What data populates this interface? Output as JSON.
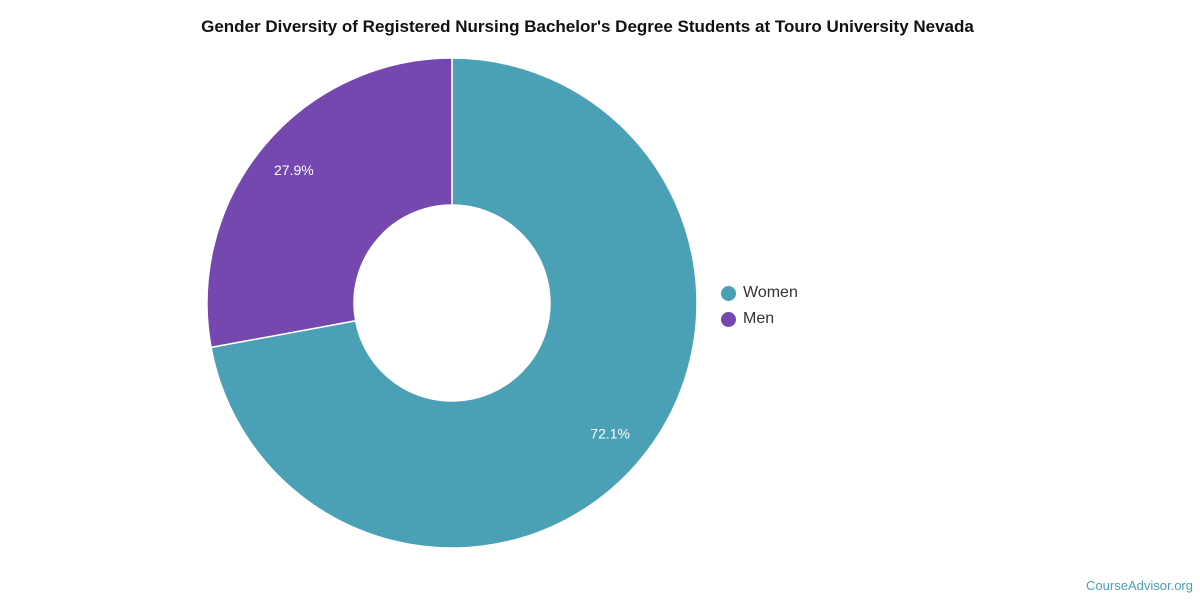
{
  "chart_data": {
    "type": "pie",
    "title": "Gender Diversity of Registered Nursing Bachelor's Degree Students at Touro University Nevada",
    "series": [
      {
        "name": "Women",
        "value": 72.1,
        "label": "72.1%",
        "color": "#4aa0b4"
      },
      {
        "name": "Men",
        "value": 27.9,
        "label": "27.9%",
        "color": "#7448ae"
      }
    ],
    "donut": true,
    "legend_position": "right"
  },
  "credit": "CourseAdvisor.org"
}
